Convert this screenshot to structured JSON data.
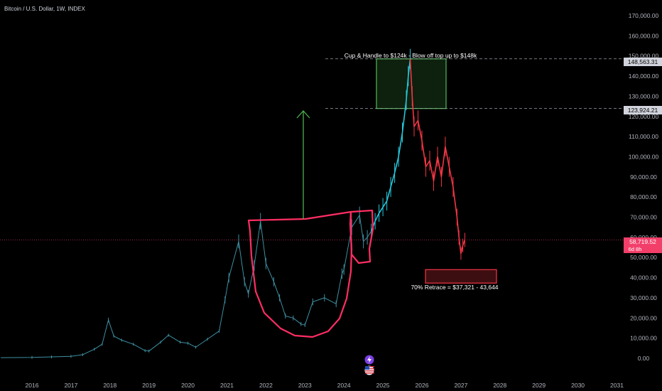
{
  "header": {
    "symbol": "Bitcoin / U.S. Dollar, 1W, INDEX"
  },
  "colors": {
    "background": "#000000",
    "history": "#3d8fa0",
    "bull_projection": "#26c6da",
    "bear_projection": "#f23645",
    "cup_outline": "#ff2e63",
    "arrow": "#4caf50",
    "target_zone": "#4caf50",
    "retrace_zone": "#f23645"
  },
  "annotations": {
    "cup_handle_text": "Cup & Handle to $124k - Blow off top up to $148k",
    "retrace_text": "70% Retrace = $37,321 - 43,644"
  },
  "price_labels": {
    "top_level": "148,563.31",
    "mid_level": "123,924.21",
    "current_price": "58,719.52",
    "countdown": "6d 8h"
  },
  "icons": [
    "lightning-icon",
    "us-flag-icon"
  ],
  "chart_data": {
    "type": "line",
    "yaxis": {
      "ticks": [
        "170,000.00",
        "160,000.00",
        "150,000.00",
        "140,000.00",
        "130,000.00",
        "120,000.00",
        "110,000.00",
        "100,000.00",
        "90,000.00",
        "80,000.00",
        "70,000.00",
        "60,000.00",
        "50,000.00",
        "40,000.00",
        "30,000.00",
        "20,000.00",
        "10,000.00",
        "0.00"
      ],
      "tick_values": [
        170000,
        160000,
        150000,
        140000,
        130000,
        120000,
        110000,
        100000,
        90000,
        80000,
        70000,
        60000,
        50000,
        40000,
        30000,
        20000,
        10000,
        0
      ],
      "range": [
        0,
        170000
      ]
    },
    "xaxis": {
      "ticks": [
        "2016",
        "2017",
        "2018",
        "2019",
        "2020",
        "2021",
        "2022",
        "2023",
        "2024",
        "2025",
        "2026",
        "2027",
        "2028",
        "2029",
        "2030",
        "2031"
      ],
      "tick_values": [
        2016,
        2017,
        2018,
        2019,
        2020,
        2021,
        2022,
        2023,
        2024,
        2025,
        2026,
        2027,
        2028,
        2029,
        2030,
        2031
      ],
      "range": [
        2015.2,
        2031.2
      ]
    },
    "series": [
      {
        "role": "history",
        "x": [
          2015.2,
          2016.0,
          2016.5,
          2017.0,
          2017.3,
          2017.6,
          2017.8,
          2017.96,
          2018.1,
          2018.3,
          2018.6,
          2018.9,
          2019.0,
          2019.3,
          2019.5,
          2019.8,
          2020.0,
          2020.2,
          2020.5,
          2020.8,
          2020.95,
          2021.05,
          2021.3,
          2021.45,
          2021.55,
          2021.7,
          2021.86,
          2022.0,
          2022.2,
          2022.35,
          2022.5,
          2022.7,
          2022.9,
          2023.0,
          2023.2,
          2023.5,
          2023.8,
          2023.95,
          2024.0,
          2024.2,
          2024.4,
          2024.5,
          2024.6,
          2024.7
        ],
        "y": [
          300,
          430,
          700,
          1000,
          1800,
          4500,
          7000,
          19000,
          11000,
          9000,
          7000,
          3800,
          3600,
          8000,
          11500,
          8000,
          7500,
          5500,
          9500,
          13500,
          29000,
          40000,
          58000,
          38000,
          32000,
          46000,
          68000,
          47000,
          38000,
          30000,
          21000,
          20000,
          17000,
          16500,
          28000,
          30000,
          27000,
          42000,
          44000,
          65000,
          71000,
          58000,
          60000,
          63000
        ]
      },
      {
        "role": "bull projection",
        "x": [
          2024.7,
          2024.8,
          2024.9,
          2025.0,
          2025.1,
          2025.2,
          2025.3,
          2025.4,
          2025.5,
          2025.6,
          2025.65,
          2025.7
        ],
        "y": [
          63000,
          68000,
          72000,
          75000,
          78000,
          85000,
          92000,
          100000,
          112000,
          128000,
          140000,
          148563
        ]
      },
      {
        "role": "bear projection",
        "x": [
          2025.7,
          2025.75,
          2025.8,
          2025.9,
          2026.0,
          2026.1,
          2026.2,
          2026.3,
          2026.4,
          2026.5,
          2026.6,
          2026.7,
          2026.8,
          2026.9,
          2026.95,
          2027.0,
          2027.05,
          2027.1
        ],
        "y": [
          148563,
          130000,
          115000,
          118000,
          108000,
          95000,
          98000,
          88000,
          100000,
          90000,
          105000,
          95000,
          85000,
          70000,
          60000,
          52000,
          56000,
          58720
        ]
      }
    ],
    "levels": [
      148563.31,
      123924.21,
      58719.52
    ],
    "target_zone": [
      123924.21,
      148563.31
    ],
    "retrace_zone": [
      37321,
      43644
    ]
  }
}
